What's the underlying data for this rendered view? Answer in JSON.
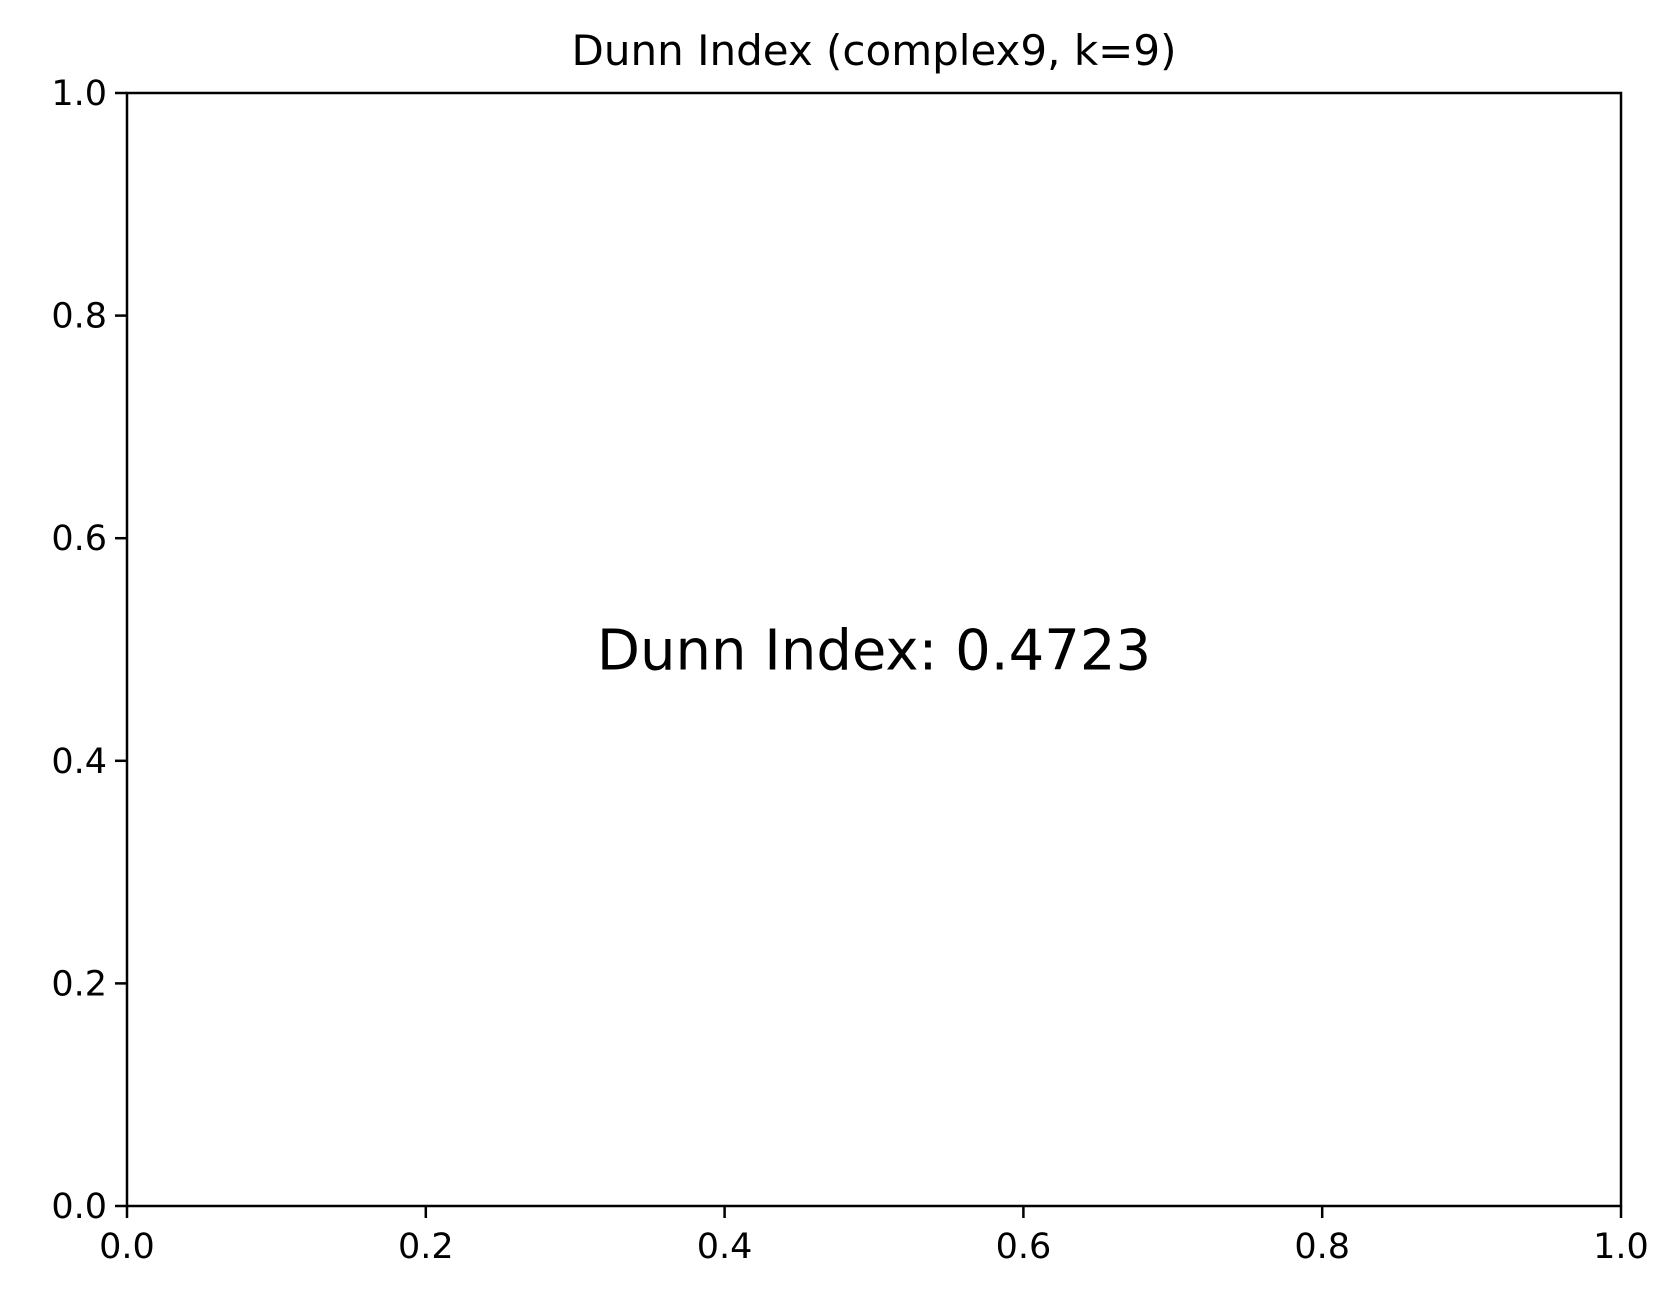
{
  "chart_data": {
    "type": "scatter",
    "title": "Dunn Index (complex9, k=9)",
    "xlabel": "",
    "ylabel": "",
    "xlim": [
      0.0,
      1.0
    ],
    "ylim": [
      0.0,
      1.0
    ],
    "x_ticks": [
      "0.0",
      "0.2",
      "0.4",
      "0.6",
      "0.8",
      "1.0"
    ],
    "y_ticks": [
      "0.0",
      "0.2",
      "0.4",
      "0.6",
      "0.8",
      "1.0"
    ],
    "series": [],
    "grid": false,
    "annotations": [
      {
        "text": "Dunn Index: 0.4723",
        "x": 0.5,
        "y": 0.5
      }
    ]
  }
}
